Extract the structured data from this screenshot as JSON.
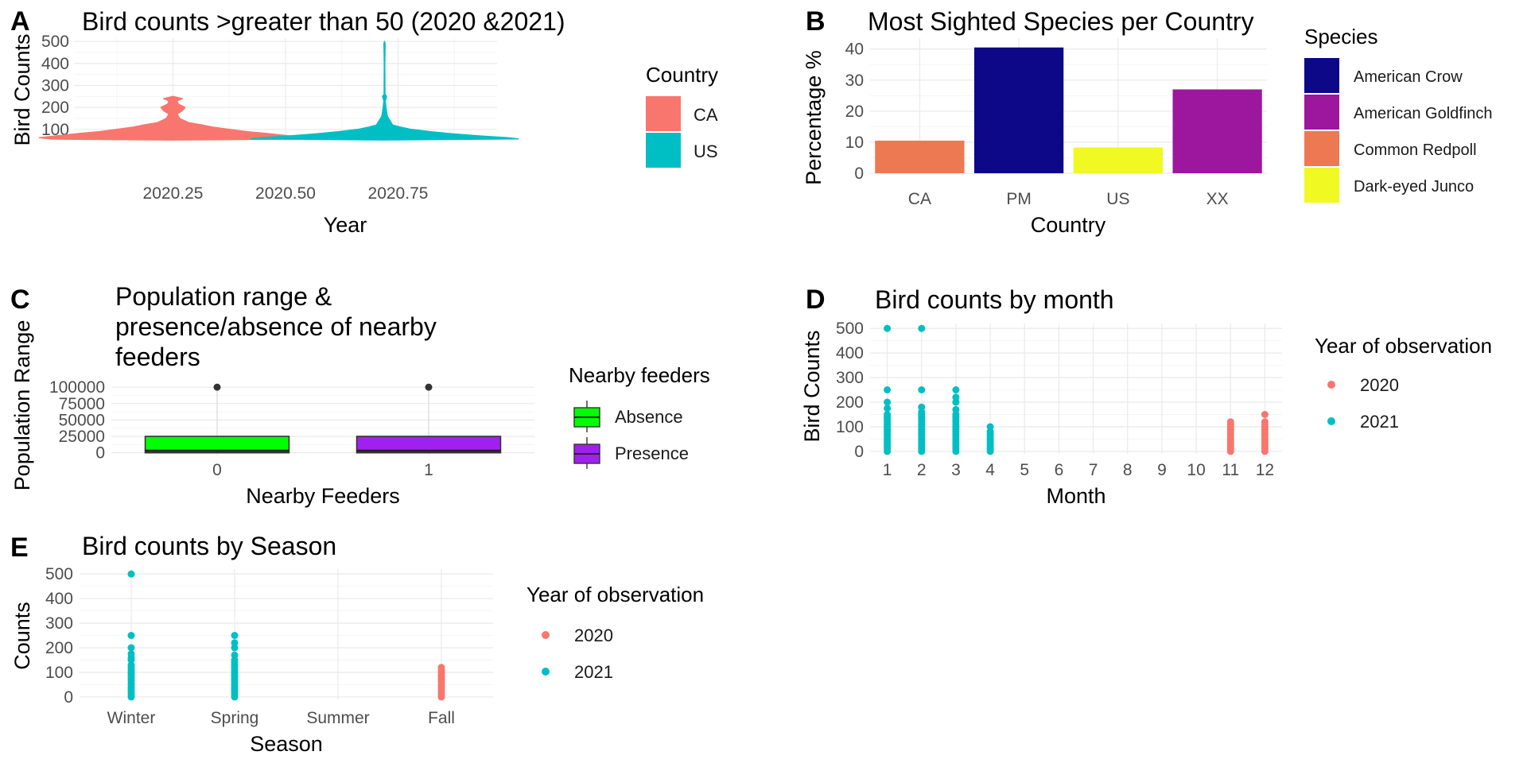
{
  "chart_data": [
    {
      "panel": "A",
      "type": "violin",
      "title": "Bird counts >greater than 50 (2020 &2021)",
      "xlabel": "Year",
      "ylabel": "Bird Counts",
      "xlim": [
        2020.03,
        2020.97
      ],
      "ylim": [
        45,
        515
      ],
      "x_ticks": [
        2020.25,
        2020.5,
        2020.75
      ],
      "x_tick_labels": [
        "2020.25",
        "2020.50",
        "2020.75"
      ],
      "y_ticks": [
        100,
        200,
        300,
        400,
        500
      ],
      "legend": {
        "title": "Country",
        "position": "right"
      },
      "series": [
        {
          "name": "CA",
          "color": "#F8766D",
          "x_center": 2020.25,
          "y_range": [
            52,
            250
          ],
          "profile": [
            [
              52,
              0
            ],
            [
              56,
              0.9
            ],
            [
              62,
              1.0
            ],
            [
              70,
              0.88
            ],
            [
              80,
              0.72
            ],
            [
              90,
              0.55
            ],
            [
              100,
              0.42
            ],
            [
              110,
              0.3
            ],
            [
              120,
              0.22
            ],
            [
              130,
              0.12
            ],
            [
              150,
              0.05
            ],
            [
              170,
              0.03
            ],
            [
              185,
              0.07
            ],
            [
              200,
              0.09
            ],
            [
              215,
              0.04
            ],
            [
              230,
              0.03
            ],
            [
              240,
              0.07
            ],
            [
              250,
              0.0
            ]
          ]
        },
        {
          "name": "US",
          "color": "#00BFC4",
          "x_center": 2020.72,
          "y_range": [
            52,
            500
          ],
          "profile": [
            [
              52,
              0
            ],
            [
              57,
              1.0
            ],
            [
              62,
              0.92
            ],
            [
              70,
              0.72
            ],
            [
              80,
              0.5
            ],
            [
              90,
              0.34
            ],
            [
              100,
              0.2
            ],
            [
              110,
              0.12
            ],
            [
              120,
              0.06
            ],
            [
              140,
              0.04
            ],
            [
              160,
              0.02
            ],
            [
              200,
              0.01
            ],
            [
              230,
              0.005
            ],
            [
              250,
              0.015
            ],
            [
              260,
              0.003
            ],
            [
              400,
              0.002
            ],
            [
              490,
              0.004
            ],
            [
              500,
              0.0
            ]
          ]
        }
      ]
    },
    {
      "panel": "B",
      "type": "bar",
      "title": "Most Sighted Species per Country",
      "xlabel": "Country",
      "ylabel": "Percentage %",
      "ylim": [
        0,
        43.5
      ],
      "y_ticks": [
        0,
        10,
        20,
        30,
        40
      ],
      "categories": [
        "CA",
        "PM",
        "US",
        "XX"
      ],
      "values": [
        10.5,
        40.5,
        8.3,
        27.0
      ],
      "species": [
        "Common Redpoll",
        "American Crow",
        "Dark-eyed Junco",
        "American Goldfinch"
      ],
      "legend": {
        "title": "Species",
        "position": "right",
        "items": [
          {
            "name": "American Crow",
            "color": "#0D0887"
          },
          {
            "name": "American Goldfinch",
            "color": "#9C179E"
          },
          {
            "name": "Common Redpoll",
            "color": "#ED7953"
          },
          {
            "name": "Dark-eyed Junco",
            "color": "#F0F921"
          }
        ]
      }
    },
    {
      "panel": "C",
      "type": "boxplot",
      "title_lines": [
        "Population range &",
        "presence/absence of nearby",
        "feeders"
      ],
      "xlabel": "Nearby Feeders",
      "ylabel": "Population Range",
      "ylim": [
        -4000,
        105000
      ],
      "y_ticks": [
        0,
        25000,
        50000,
        75000,
        100000
      ],
      "categories": [
        "0",
        "1"
      ],
      "boxes": [
        {
          "q1": 0,
          "median": 3000,
          "q3": 25000,
          "outlier": 100000,
          "fill": "#00FF00"
        },
        {
          "q1": 0,
          "median": 3000,
          "q3": 25000,
          "outlier": 100000,
          "fill": "#A020F0"
        }
      ],
      "legend": {
        "title": "Nearby feeders",
        "position": "right",
        "items": [
          {
            "name": "Absence",
            "color": "#00FF00"
          },
          {
            "name": "Presence",
            "color": "#A020F0"
          }
        ]
      }
    },
    {
      "panel": "D",
      "type": "scatter",
      "title": "Bird counts by month",
      "xlabel": "Month",
      "ylabel": "Bird Counts",
      "x_categories": [
        "1",
        "2",
        "3",
        "4",
        "5",
        "6",
        "7",
        "8",
        "9",
        "10",
        "11",
        "12"
      ],
      "ylim": [
        -10,
        520
      ],
      "y_ticks": [
        0,
        100,
        200,
        300,
        400,
        500
      ],
      "legend": {
        "title": "Year of observation",
        "position": "right"
      },
      "series": [
        {
          "name": "2020",
          "color": "#F8766D",
          "points": [
            [
              11,
              0
            ],
            [
              11,
              10
            ],
            [
              11,
              20
            ],
            [
              11,
              30
            ],
            [
              11,
              40
            ],
            [
              11,
              50
            ],
            [
              11,
              60
            ],
            [
              11,
              70
            ],
            [
              11,
              80
            ],
            [
              11,
              90
            ],
            [
              11,
              100
            ],
            [
              11,
              110
            ],
            [
              11,
              120
            ],
            [
              12,
              0
            ],
            [
              12,
              10
            ],
            [
              12,
              20
            ],
            [
              12,
              30
            ],
            [
              12,
              40
            ],
            [
              12,
              50
            ],
            [
              12,
              60
            ],
            [
              12,
              70
            ],
            [
              12,
              80
            ],
            [
              12,
              90
            ],
            [
              12,
              100
            ],
            [
              12,
              110
            ],
            [
              12,
              120
            ],
            [
              12,
              150
            ]
          ]
        },
        {
          "name": "2021",
          "color": "#00BFC4",
          "points": [
            [
              1,
              0
            ],
            [
              1,
              10
            ],
            [
              1,
              20
            ],
            [
              1,
              30
            ],
            [
              1,
              40
            ],
            [
              1,
              50
            ],
            [
              1,
              60
            ],
            [
              1,
              70
            ],
            [
              1,
              80
            ],
            [
              1,
              90
            ],
            [
              1,
              100
            ],
            [
              1,
              110
            ],
            [
              1,
              120
            ],
            [
              1,
              130
            ],
            [
              1,
              140
            ],
            [
              1,
              150
            ],
            [
              1,
              175
            ],
            [
              1,
              200
            ],
            [
              1,
              250
            ],
            [
              1,
              500
            ],
            [
              2,
              0
            ],
            [
              2,
              10
            ],
            [
              2,
              20
            ],
            [
              2,
              30
            ],
            [
              2,
              40
            ],
            [
              2,
              50
            ],
            [
              2,
              60
            ],
            [
              2,
              70
            ],
            [
              2,
              80
            ],
            [
              2,
              90
            ],
            [
              2,
              100
            ],
            [
              2,
              110
            ],
            [
              2,
              120
            ],
            [
              2,
              130
            ],
            [
              2,
              140
            ],
            [
              2,
              150
            ],
            [
              2,
              160
            ],
            [
              2,
              180
            ],
            [
              2,
              250
            ],
            [
              2,
              500
            ],
            [
              3,
              0
            ],
            [
              3,
              10
            ],
            [
              3,
              20
            ],
            [
              3,
              30
            ],
            [
              3,
              40
            ],
            [
              3,
              50
            ],
            [
              3,
              60
            ],
            [
              3,
              70
            ],
            [
              3,
              80
            ],
            [
              3,
              90
            ],
            [
              3,
              100
            ],
            [
              3,
              110
            ],
            [
              3,
              120
            ],
            [
              3,
              130
            ],
            [
              3,
              140
            ],
            [
              3,
              150
            ],
            [
              3,
              170
            ],
            [
              3,
              200
            ],
            [
              3,
              220
            ],
            [
              3,
              250
            ],
            [
              4,
              0
            ],
            [
              4,
              10
            ],
            [
              4,
              20
            ],
            [
              4,
              30
            ],
            [
              4,
              40
            ],
            [
              4,
              50
            ],
            [
              4,
              60
            ],
            [
              4,
              70
            ],
            [
              4,
              80
            ],
            [
              4,
              100
            ]
          ]
        }
      ]
    },
    {
      "panel": "E",
      "type": "scatter",
      "title": "Bird counts by Season",
      "xlabel": "Season",
      "ylabel": "Counts",
      "x_categories": [
        "Winter",
        "Spring",
        "Summer",
        "Fall"
      ],
      "ylim": [
        -10,
        520
      ],
      "y_ticks": [
        0,
        100,
        200,
        300,
        400,
        500
      ],
      "legend": {
        "title": "Year of observation",
        "position": "right"
      },
      "series": [
        {
          "name": "2020",
          "color": "#F8766D",
          "points": [
            [
              "Winter",
              50
            ],
            [
              "Winter",
              65
            ],
            [
              "Fall",
              0
            ],
            [
              "Fall",
              10
            ],
            [
              "Fall",
              20
            ],
            [
              "Fall",
              30
            ],
            [
              "Fall",
              40
            ],
            [
              "Fall",
              50
            ],
            [
              "Fall",
              60
            ],
            [
              "Fall",
              70
            ],
            [
              "Fall",
              80
            ],
            [
              "Fall",
              90
            ],
            [
              "Fall",
              100
            ],
            [
              "Fall",
              110
            ],
            [
              "Fall",
              120
            ]
          ]
        },
        {
          "name": "2021",
          "color": "#00BFC4",
          "points": [
            [
              "Winter",
              0
            ],
            [
              "Winter",
              10
            ],
            [
              "Winter",
              20
            ],
            [
              "Winter",
              30
            ],
            [
              "Winter",
              40
            ],
            [
              "Winter",
              55
            ],
            [
              "Winter",
              70
            ],
            [
              "Winter",
              80
            ],
            [
              "Winter",
              90
            ],
            [
              "Winter",
              100
            ],
            [
              "Winter",
              110
            ],
            [
              "Winter",
              120
            ],
            [
              "Winter",
              130
            ],
            [
              "Winter",
              150
            ],
            [
              "Winter",
              160
            ],
            [
              "Winter",
              175
            ],
            [
              "Winter",
              200
            ],
            [
              "Winter",
              250
            ],
            [
              "Winter",
              500
            ],
            [
              "Spring",
              0
            ],
            [
              "Spring",
              10
            ],
            [
              "Spring",
              20
            ],
            [
              "Spring",
              30
            ],
            [
              "Spring",
              40
            ],
            [
              "Spring",
              50
            ],
            [
              "Spring",
              60
            ],
            [
              "Spring",
              70
            ],
            [
              "Spring",
              80
            ],
            [
              "Spring",
              90
            ],
            [
              "Spring",
              100
            ],
            [
              "Spring",
              110
            ],
            [
              "Spring",
              120
            ],
            [
              "Spring",
              130
            ],
            [
              "Spring",
              140
            ],
            [
              "Spring",
              150
            ],
            [
              "Spring",
              170
            ],
            [
              "Spring",
              200
            ],
            [
              "Spring",
              220
            ],
            [
              "Spring",
              250
            ]
          ]
        }
      ]
    }
  ]
}
